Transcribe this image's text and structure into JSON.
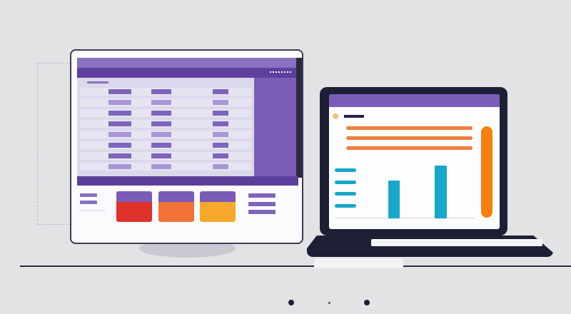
{
  "colors": {
    "background": "#e3e3e6",
    "accent_purple": "#7a5bb8",
    "dark_purple": "#5c3f9c",
    "table_bg": "#dcd8ec",
    "card_red": "#e0312a",
    "card_orange": "#f2733a",
    "card_yellow": "#f5a82a",
    "bar_orange": "#ef7f3c",
    "vertical_orange": "#f5800f",
    "chart_cyan": "#16a7c9",
    "frame_dark": "#1d2035"
  },
  "monitor": {
    "table_rows": 8,
    "stat_cards": [
      "red",
      "orange",
      "yellow"
    ]
  },
  "laptop": {
    "chart_bars_relative": [
      0.55,
      0.78
    ],
    "progress_fill": 1.0
  }
}
